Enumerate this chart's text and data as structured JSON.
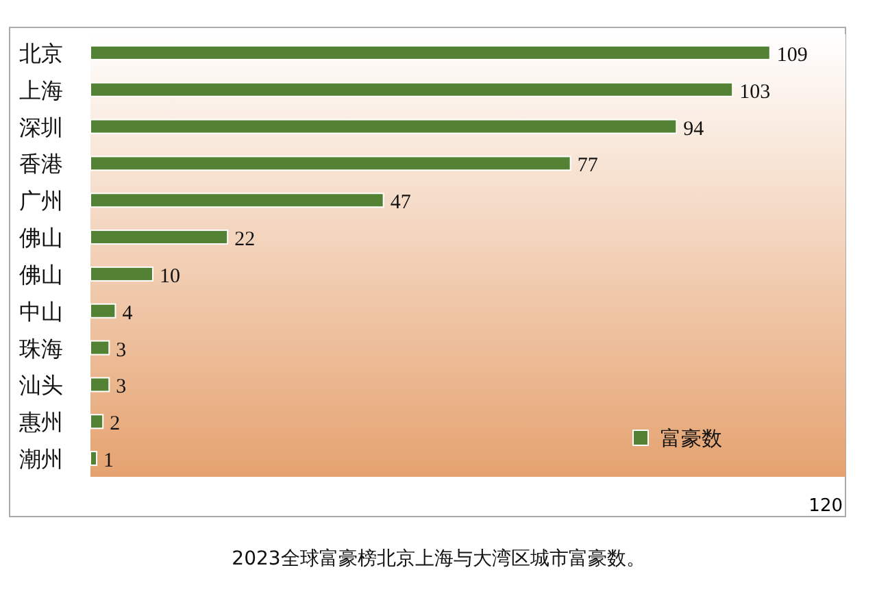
{
  "chart_data": {
    "type": "bar",
    "orientation": "horizontal",
    "categories": [
      "北京",
      "上海",
      "深圳",
      "香港",
      "广州",
      "佛山",
      "佛山",
      "中山",
      "珠海",
      "汕头",
      "惠州",
      "潮州"
    ],
    "series": [
      {
        "name": "富豪数",
        "color": "#548235",
        "values": [
          109,
          103,
          94,
          77,
          47,
          22,
          10,
          4,
          3,
          3,
          2,
          1
        ]
      }
    ],
    "data_labels": true,
    "legend": "bottom right",
    "annotations": [
      "120",
      "2023全球富豪榜北京上海与大湾区城市富豪数。"
    ]
  }
}
